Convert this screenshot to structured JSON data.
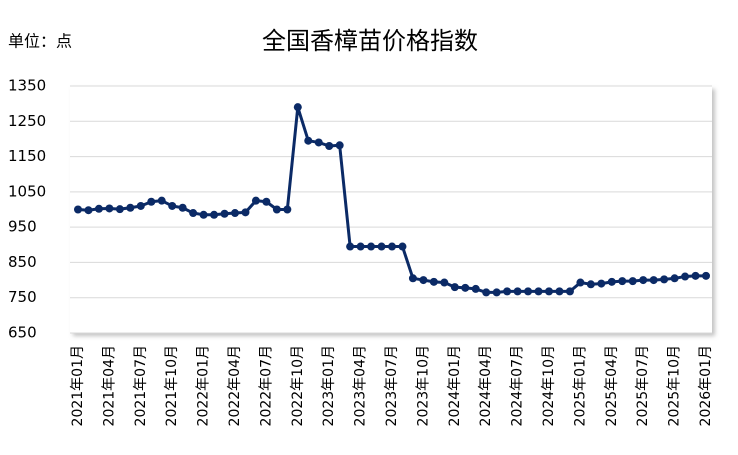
{
  "chart_data": {
    "type": "line",
    "title": "全国香樟苗价格指数",
    "unit_label": "单位：点",
    "categories": [
      "2021年01月",
      null,
      null,
      "2021年04月",
      null,
      null,
      "2021年07月",
      null,
      null,
      "2021年10月",
      null,
      null,
      "2022年01月",
      null,
      null,
      "2022年04月",
      null,
      null,
      "2022年07月",
      null,
      null,
      "2022年10月",
      null,
      null,
      "2023年01月",
      null,
      null,
      "2023年04月",
      null,
      null,
      "2023年07月",
      null,
      null,
      "2023年10月",
      null,
      null,
      "2024年01月",
      null,
      null,
      "2024年04月",
      null,
      null,
      "2024年07月",
      null,
      null,
      "2024年10月",
      null,
      null,
      "2025年01月",
      null,
      null,
      "2025年04月",
      null,
      null,
      "2025年07月",
      null,
      null,
      "2025年10月",
      null,
      null,
      "2026年01月"
    ],
    "series": [
      {
        "name": "全国香樟苗价格指数",
        "color": "#0b2a66",
        "values": [
          1000,
          998,
          1002,
          1003,
          1001,
          1005,
          1010,
          1022,
          1025,
          1010,
          1005,
          990,
          985,
          985,
          988,
          990,
          992,
          1025,
          1022,
          1000,
          1000,
          1290,
          1195,
          1190,
          1180,
          1182,
          895,
          895,
          895,
          895,
          895,
          895,
          805,
          800,
          795,
          793,
          780,
          778,
          775,
          765,
          765,
          768,
          768,
          768,
          768,
          768,
          768,
          768,
          793,
          788,
          790,
          795,
          797,
          797,
          800,
          800,
          802,
          805,
          810,
          812,
          812
        ]
      }
    ],
    "ylim": [
      650,
      1350
    ],
    "yticks": [
      650,
      750,
      850,
      950,
      1050,
      1150,
      1250,
      1350
    ],
    "grid": true
  }
}
